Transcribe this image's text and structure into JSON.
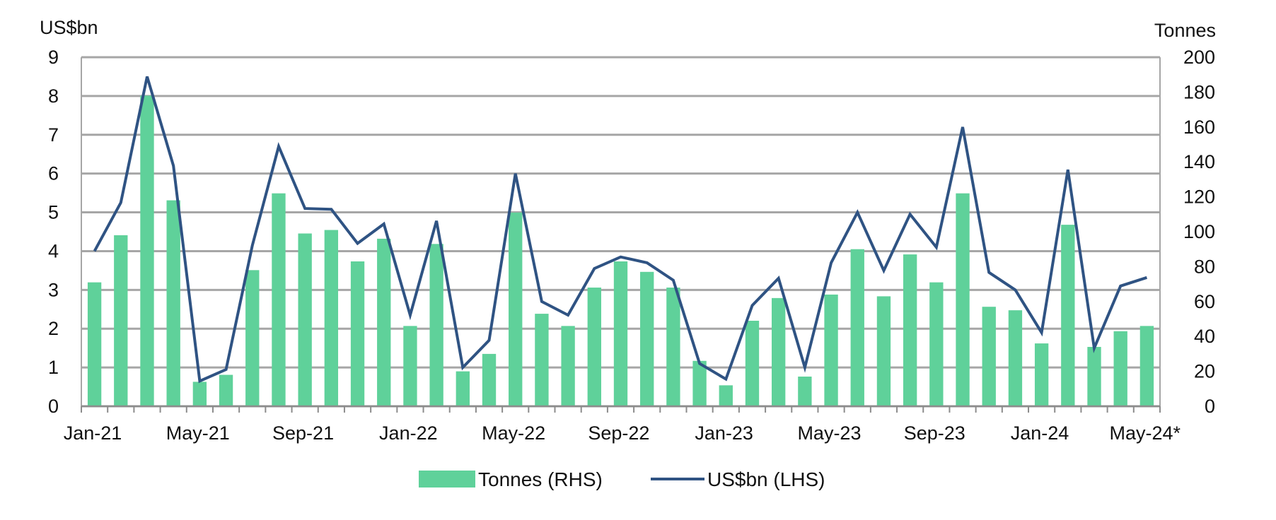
{
  "chart_data": {
    "type": "bar+line",
    "title": "",
    "left_axis_label": "US$bn",
    "right_axis_label": "Tonnes",
    "left_ylim": [
      0,
      9
    ],
    "right_ylim": [
      0,
      200
    ],
    "left_ticks": [
      "0",
      "1",
      "2",
      "3",
      "4",
      "5",
      "6",
      "7",
      "8",
      "9"
    ],
    "right_ticks": [
      "0",
      "20",
      "40",
      "60",
      "80",
      "100",
      "120",
      "140",
      "160",
      "180",
      "200"
    ],
    "x_tick_labels": [
      {
        "index": 0,
        "label": "Jan-21"
      },
      {
        "index": 4,
        "label": "May-21"
      },
      {
        "index": 8,
        "label": "Sep-21"
      },
      {
        "index": 12,
        "label": "Jan-22"
      },
      {
        "index": 16,
        "label": "May-22"
      },
      {
        "index": 20,
        "label": "Sep-22"
      },
      {
        "index": 24,
        "label": "Jan-23"
      },
      {
        "index": 28,
        "label": "May-23"
      },
      {
        "index": 32,
        "label": "Sep-23"
      },
      {
        "index": 36,
        "label": "Jan-24"
      },
      {
        "index": 40,
        "label": "May-24*"
      }
    ],
    "series": [
      {
        "name": "Tonnes (RHS)",
        "type": "bar",
        "axis": "right",
        "color": "#5fd19a",
        "values": [
          71,
          98,
          178,
          118,
          14,
          18,
          78,
          122,
          99,
          101,
          83,
          96,
          46,
          93,
          20,
          30,
          111,
          53,
          46,
          68,
          83,
          77,
          68,
          26,
          12,
          49,
          62,
          17,
          64,
          90,
          63,
          87,
          71,
          122,
          57,
          55,
          36,
          104,
          34,
          43,
          46
        ]
      },
      {
        "name": "US$bn (LHS)",
        "type": "line",
        "axis": "left",
        "color": "#2f5383",
        "values": [
          4.0,
          5.25,
          8.5,
          6.2,
          0.65,
          0.95,
          4.15,
          6.7,
          5.1,
          5.08,
          4.2,
          4.7,
          2.35,
          4.78,
          1.0,
          1.7,
          6.0,
          2.7,
          2.35,
          3.55,
          3.85,
          3.7,
          3.25,
          1.1,
          0.7,
          2.6,
          3.3,
          1.0,
          3.7,
          5.0,
          3.5,
          4.95,
          4.1,
          7.2,
          3.45,
          3.0,
          1.9,
          6.1,
          1.5,
          3.1,
          3.32
        ]
      }
    ],
    "legend": [
      {
        "label": "Tonnes (RHS)",
        "kind": "bar"
      },
      {
        "label": "US$bn (LHS)",
        "kind": "line"
      }
    ],
    "grid": true
  }
}
